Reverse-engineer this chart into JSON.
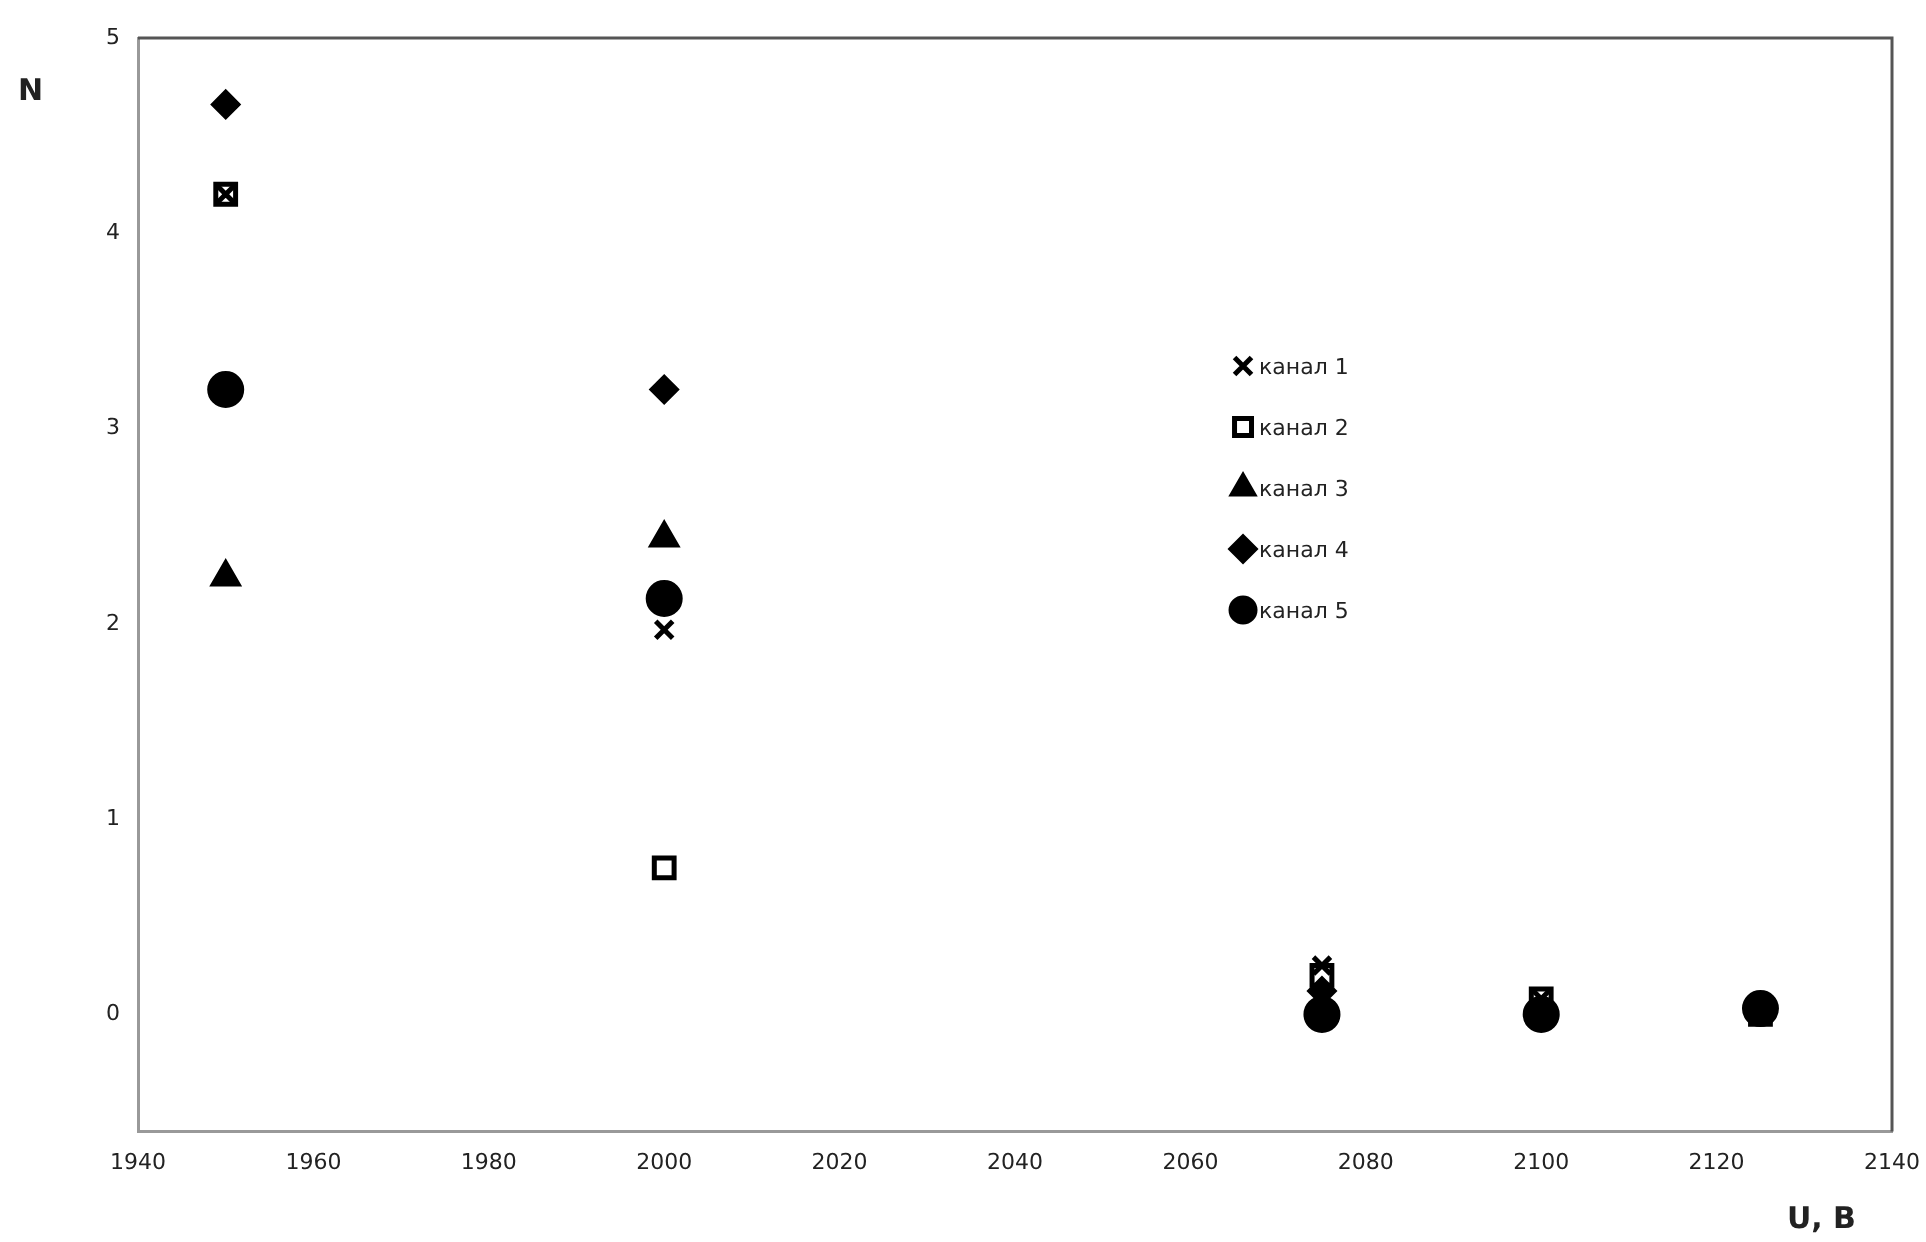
{
  "chart_data": {
    "type": "scatter",
    "xlabel": "U, B",
    "ylabel": "N",
    "x": [
      1950,
      2000,
      2075,
      2100,
      2125
    ],
    "xlim": [
      1940,
      2140
    ],
    "xticks": [
      1940,
      1960,
      1980,
      2000,
      2020,
      2040,
      2060,
      2080,
      2100,
      2120,
      2140
    ],
    "ylim": [
      -0.6,
      5
    ],
    "yticks": [
      0,
      1,
      2,
      3,
      4,
      5
    ],
    "grid": false,
    "legend": "right",
    "series": [
      {
        "name": "канал 1",
        "color": "#000000",
        "marker": "cross",
        "values": [
          4.2,
          1.97,
          0.25,
          0.08,
          null
        ]
      },
      {
        "name": "канал 2",
        "color": "#000000",
        "marker": "square",
        "values": [
          4.2,
          0.75,
          0.2,
          0.08,
          0
        ]
      },
      {
        "name": "канал 3",
        "color": "#000000",
        "marker": "triangle",
        "values": [
          2.24,
          2.44,
          null,
          null,
          null
        ]
      },
      {
        "name": "канал 4",
        "color": "#000000",
        "marker": "diamond",
        "values": [
          4.66,
          3.2,
          0.12,
          null,
          null
        ]
      },
      {
        "name": "канал 5",
        "color": "#000000",
        "marker": "circle",
        "values": [
          3.2,
          2.13,
          0,
          0,
          0.03
        ]
      }
    ]
  }
}
